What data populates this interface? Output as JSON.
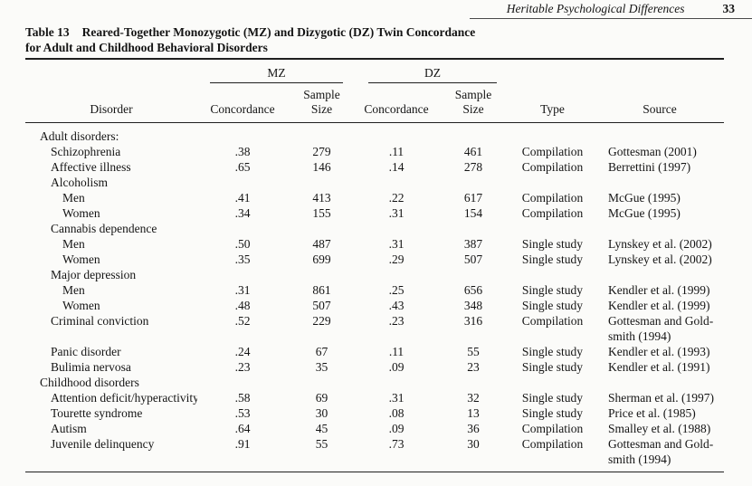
{
  "page": {
    "running_head": "Heritable Psychological Differences",
    "page_number": "33"
  },
  "table": {
    "caption_label": "Table 13",
    "caption_line1": "Reared-Together Monozygotic (MZ) and Dizygotic (DZ) Twin Concordance",
    "caption_line2": "for Adult and Childhood Behavioral Disorders",
    "spanners": {
      "mz": "MZ",
      "dz": "DZ"
    },
    "header": {
      "disorder": "Disorder",
      "concordance": "Concordance",
      "sample_size": "Sample\nSize",
      "type": "Type",
      "source": "Source"
    },
    "rows": [
      {
        "kind": "section",
        "indent": 0,
        "label": "Adult disorders:"
      },
      {
        "kind": "data",
        "indent": 1,
        "disorder": "Schizophrenia",
        "mz_concordance": ".38",
        "mz_sample": "279",
        "dz_concordance": ".11",
        "dz_sample": "461",
        "type": "Compilation",
        "source": "Gottesman (2001)"
      },
      {
        "kind": "data",
        "indent": 1,
        "disorder": "Affective illness",
        "mz_concordance": ".65",
        "mz_sample": "146",
        "dz_concordance": ".14",
        "dz_sample": "278",
        "type": "Compilation",
        "source": "Berrettini (1997)"
      },
      {
        "kind": "subsection",
        "indent": 1,
        "label": "Alcoholism"
      },
      {
        "kind": "data",
        "indent": 2,
        "disorder": "Men",
        "mz_concordance": ".41",
        "mz_sample": "413",
        "dz_concordance": ".22",
        "dz_sample": "617",
        "type": "Compilation",
        "source": "McGue (1995)"
      },
      {
        "kind": "data",
        "indent": 2,
        "disorder": "Women",
        "mz_concordance": ".34",
        "mz_sample": "155",
        "dz_concordance": ".31",
        "dz_sample": "154",
        "type": "Compilation",
        "source": "McGue (1995)"
      },
      {
        "kind": "subsection",
        "indent": 1,
        "label": "Cannabis dependence"
      },
      {
        "kind": "data",
        "indent": 2,
        "disorder": "Men",
        "mz_concordance": ".50",
        "mz_sample": "487",
        "dz_concordance": ".31",
        "dz_sample": "387",
        "type": "Single study",
        "source": "Lynskey et al. (2002)"
      },
      {
        "kind": "data",
        "indent": 2,
        "disorder": "Women",
        "mz_concordance": ".35",
        "mz_sample": "699",
        "dz_concordance": ".29",
        "dz_sample": "507",
        "type": "Single study",
        "source": "Lynskey et al. (2002)"
      },
      {
        "kind": "subsection",
        "indent": 1,
        "label": "Major depression"
      },
      {
        "kind": "data",
        "indent": 2,
        "disorder": "Men",
        "mz_concordance": ".31",
        "mz_sample": "861",
        "dz_concordance": ".25",
        "dz_sample": "656",
        "type": "Single study",
        "source": "Kendler et al. (1999)"
      },
      {
        "kind": "data",
        "indent": 2,
        "disorder": "Women",
        "mz_concordance": ".48",
        "mz_sample": "507",
        "dz_concordance": ".43",
        "dz_sample": "348",
        "type": "Single study",
        "source": "Kendler et al. (1999)"
      },
      {
        "kind": "data",
        "indent": 1,
        "disorder": "Criminal conviction",
        "mz_concordance": ".52",
        "mz_sample": "229",
        "dz_concordance": ".23",
        "dz_sample": "316",
        "type": "Compilation",
        "source": "Gottesman and Gold-\nsmith (1994)"
      },
      {
        "kind": "data",
        "indent": 1,
        "disorder": "Panic disorder",
        "mz_concordance": ".24",
        "mz_sample": "67",
        "dz_concordance": ".11",
        "dz_sample": "55",
        "type": "Single study",
        "source": "Kendler et al. (1993)"
      },
      {
        "kind": "data",
        "indent": 1,
        "disorder": "Bulimia nervosa",
        "mz_concordance": ".23",
        "mz_sample": "35",
        "dz_concordance": ".09",
        "dz_sample": "23",
        "type": "Single study",
        "source": "Kendler et al. (1991)"
      },
      {
        "kind": "section",
        "indent": 0,
        "label": "Childhood disorders"
      },
      {
        "kind": "data",
        "indent": 1,
        "disorder": "Attention deficit/hyperactivity",
        "mz_concordance": ".58",
        "mz_sample": "69",
        "dz_concordance": ".31",
        "dz_sample": "32",
        "type": "Single study",
        "source": "Sherman et al. (1997)"
      },
      {
        "kind": "data",
        "indent": 1,
        "disorder": "Tourette syndrome",
        "mz_concordance": ".53",
        "mz_sample": "30",
        "dz_concordance": ".08",
        "dz_sample": "13",
        "type": "Single study",
        "source": "Price et al. (1985)"
      },
      {
        "kind": "data",
        "indent": 1,
        "disorder": "Autism",
        "mz_concordance": ".64",
        "mz_sample": "45",
        "dz_concordance": ".09",
        "dz_sample": "36",
        "type": "Compilation",
        "source": "Smalley et al. (1988)"
      },
      {
        "kind": "data",
        "indent": 1,
        "disorder": "Juvenile delinquency",
        "mz_concordance": ".91",
        "mz_sample": "55",
        "dz_concordance": ".73",
        "dz_sample": "30",
        "type": "Compilation",
        "source": "Gottesman and Gold-\nsmith (1994)"
      }
    ]
  }
}
